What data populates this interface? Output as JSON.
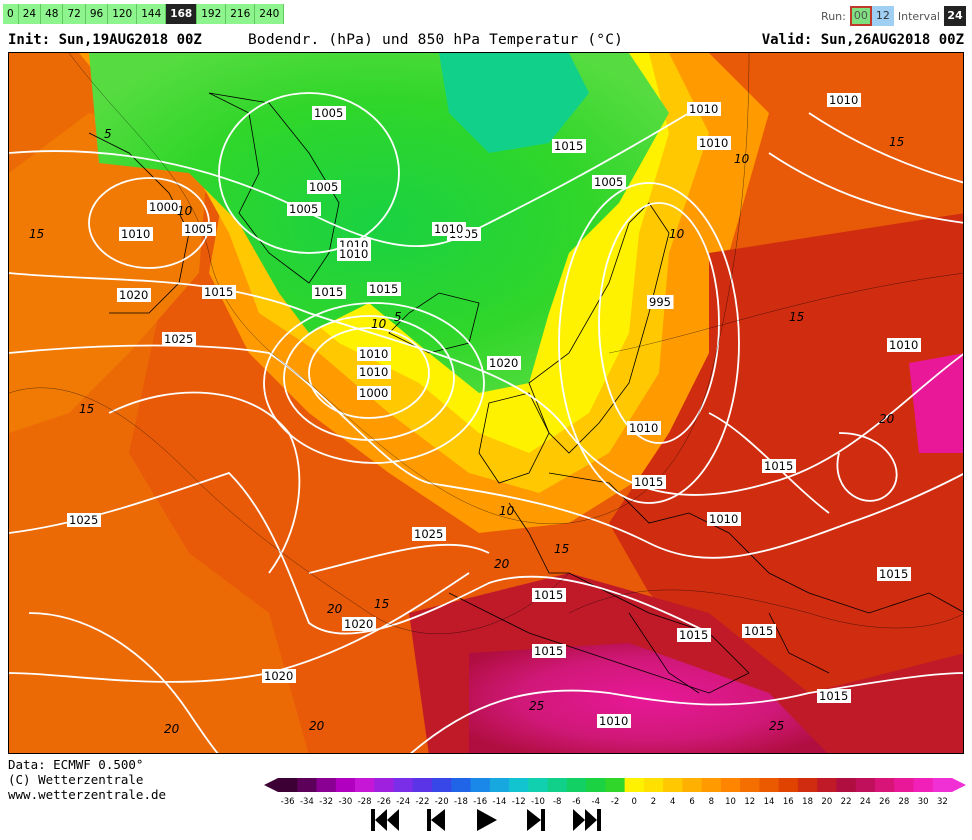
{
  "toolbar": {
    "hours": [
      "0",
      "24",
      "48",
      "72",
      "96",
      "120",
      "144",
      "168",
      "192",
      "216",
      "240"
    ],
    "active_hour": "168",
    "run_label": "Run:",
    "run_00": "00",
    "run_12": "12",
    "interval_label": "Interval",
    "interval_value": "24"
  },
  "header": {
    "init": "Init: Sun,19AUG2018 00Z",
    "title": "Bodendr. (hPa) und 850 hPa Temperatur (°C)",
    "valid": "Valid: Sun,26AUG2018 00Z"
  },
  "map": {
    "isobar_labels": [
      "1005",
      "1000",
      "1010",
      "1005",
      "1020",
      "1015",
      "1025",
      "1005",
      "1010",
      "1010",
      "1015",
      "1015",
      "1005",
      "995",
      "1010",
      "1010",
      "1020",
      "1000",
      "1005",
      "1010",
      "1010",
      "1015",
      "1005",
      "1010",
      "1010",
      "1010",
      "1015",
      "1025",
      "1025",
      "1020",
      "1015",
      "1015",
      "1010",
      "1015",
      "1015",
      "1015",
      "1020",
      "1010",
      "1015",
      "1010",
      "1015"
    ],
    "temp_labels": [
      "5",
      "15",
      "10",
      "5",
      "10",
      "10",
      "15",
      "10",
      "15",
      "15",
      "20",
      "15",
      "20",
      "25",
      "20",
      "25",
      "10",
      "20",
      "15",
      "20"
    ]
  },
  "footer": {
    "data_line": "Data: ECMWF  0.500°",
    "copyright": "(C) Wetterzentrale",
    "url": "www.wetterzentrale.de"
  },
  "legend": {
    "ticks": [
      "-36",
      "-34",
      "-32",
      "-30",
      "-28",
      "-26",
      "-24",
      "-22",
      "-20",
      "-18",
      "-16",
      "-14",
      "-12",
      "-10",
      "-8",
      "-6",
      "-4",
      "-2",
      "0",
      "2",
      "4",
      "6",
      "8",
      "10",
      "12",
      "14",
      "16",
      "18",
      "20",
      "22",
      "24",
      "26",
      "28",
      "30",
      "32"
    ],
    "colors": [
      "#3d0034",
      "#5c005a",
      "#8a0092",
      "#b100c0",
      "#c617d6",
      "#a020e0",
      "#7b2ee8",
      "#5a34e6",
      "#3848e8",
      "#2064e8",
      "#1a88e8",
      "#18a8e0",
      "#12c4d0",
      "#10d0b0",
      "#10d08a",
      "#12d064",
      "#1ad242",
      "#30d62a",
      "#fff200",
      "#ffe000",
      "#ffc800",
      "#ffb000",
      "#ff9a00",
      "#ff8400",
      "#f56e00",
      "#ec5a00",
      "#e04200",
      "#d02c10",
      "#c01a28",
      "#b00e40",
      "#c0105c",
      "#d81478",
      "#e81898",
      "#f020b8",
      "#f030d4"
    ]
  },
  "player": {
    "buttons": [
      "first",
      "prev",
      "play",
      "next",
      "last"
    ]
  }
}
